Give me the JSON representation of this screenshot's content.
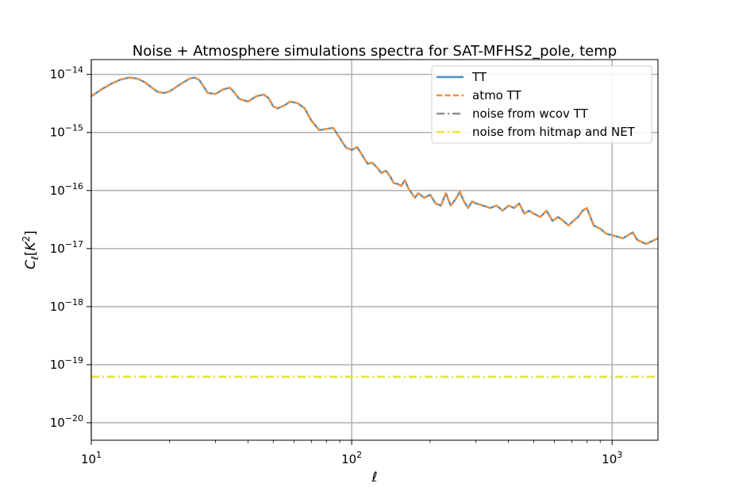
{
  "chart_data": {
    "type": "line",
    "title": "Noise + Atmosphere simulations spectra for SAT-MFHS2_pole, temp",
    "xlabel": "ℓ",
    "ylabel": "C_ℓ[K^2]",
    "xscale": "log",
    "yscale": "log",
    "xlim": [
      10,
      1500
    ],
    "ylim": [
      5e-21,
      1.8e-14
    ],
    "grid": true,
    "legend_position": "upper-right",
    "x_ticks": [
      {
        "value": 10,
        "base": "10",
        "exp": "1"
      },
      {
        "value": 100,
        "base": "10",
        "exp": "2"
      },
      {
        "value": 1000,
        "base": "10",
        "exp": "3"
      }
    ],
    "y_ticks": [
      {
        "value": 1e-14,
        "base": "10",
        "exp": "−14"
      },
      {
        "value": 1e-15,
        "base": "10",
        "exp": "−15"
      },
      {
        "value": 1e-16,
        "base": "10",
        "exp": "−16"
      },
      {
        "value": 1e-17,
        "base": "10",
        "exp": "−17"
      },
      {
        "value": 1e-18,
        "base": "10",
        "exp": "−18"
      },
      {
        "value": 1e-19,
        "base": "10",
        "exp": "−19"
      },
      {
        "value": 1e-20,
        "base": "10",
        "exp": "−20"
      }
    ],
    "series": [
      {
        "name": "TT",
        "color": "#4a90c4",
        "style": "solid",
        "x": [
          10,
          11,
          12,
          13,
          14,
          15,
          16,
          17,
          18,
          19,
          20,
          22,
          24,
          25,
          26,
          27,
          28,
          30,
          32,
          34,
          35,
          37,
          40,
          43,
          46,
          48,
          50,
          52,
          55,
          58,
          62,
          66,
          70,
          75,
          80,
          85,
          90,
          95,
          100,
          105,
          110,
          115,
          120,
          125,
          130,
          135,
          140,
          145,
          150,
          155,
          160,
          165,
          170,
          175,
          180,
          190,
          200,
          210,
          220,
          230,
          240,
          250,
          260,
          270,
          280,
          290,
          300,
          320,
          340,
          360,
          380,
          400,
          420,
          440,
          460,
          480,
          500,
          530,
          560,
          590,
          620,
          650,
          680,
          710,
          740,
          770,
          800,
          850,
          900,
          950,
          1000,
          1050,
          1100,
          1150,
          1200,
          1250,
          1300,
          1350,
          1400,
          1450,
          1500
        ],
        "y": [
          4.2e-15,
          5.6e-15,
          7e-15,
          8.2e-15,
          8.8e-15,
          8.5e-15,
          7.4e-15,
          6e-15,
          5e-15,
          4.8e-15,
          5.1e-15,
          6.8e-15,
          8.6e-15,
          8.8e-15,
          8e-15,
          6.2e-15,
          4.8e-15,
          4.6e-15,
          5.5e-15,
          5.9e-15,
          5.2e-15,
          3.8e-15,
          3.4e-15,
          4.2e-15,
          4.5e-15,
          3.9e-15,
          2.8e-15,
          2.6e-15,
          2.9e-15,
          3.4e-15,
          3.2e-15,
          2.6e-15,
          1.6e-15,
          1.1e-15,
          1.15e-15,
          1.2e-15,
          8e-16,
          5.5e-16,
          5e-16,
          5.6e-16,
          4e-16,
          2.9e-16,
          3e-16,
          2.5e-16,
          2e-16,
          2.2e-16,
          1.8e-16,
          1.35e-16,
          1.3e-16,
          1.2e-16,
          1.5e-16,
          1.1e-16,
          9e-17,
          7.5e-17,
          9e-17,
          7.5e-17,
          8.5e-17,
          6e-17,
          5.5e-17,
          9e-17,
          5.5e-17,
          7e-17,
          9.5e-17,
          6.5e-17,
          5e-17,
          6.5e-17,
          6e-17,
          5.5e-17,
          5e-17,
          5.5e-17,
          4.5e-17,
          5.5e-17,
          5e-17,
          6e-17,
          4e-17,
          4.5e-17,
          4e-17,
          3.5e-17,
          4.5e-17,
          3e-17,
          3.5e-17,
          3e-17,
          2.5e-17,
          3e-17,
          3.5e-17,
          4.5e-17,
          5e-17,
          2.5e-17,
          2.2e-17,
          1.8e-17,
          1.7e-17,
          1.6e-17,
          1.5e-17,
          1.7e-17,
          1.9e-17,
          1.4e-17,
          1.3e-17,
          1.2e-17,
          1.3e-17,
          1.4e-17,
          1.5e-17
        ]
      },
      {
        "name": "atmo TT",
        "color": "#f0913a",
        "style": "dashed",
        "x": [
          10,
          11,
          12,
          13,
          14,
          15,
          16,
          17,
          18,
          19,
          20,
          22,
          24,
          25,
          26,
          27,
          28,
          30,
          32,
          34,
          35,
          37,
          40,
          43,
          46,
          48,
          50,
          52,
          55,
          58,
          62,
          66,
          70,
          75,
          80,
          85,
          90,
          95,
          100,
          105,
          110,
          115,
          120,
          125,
          130,
          135,
          140,
          145,
          150,
          155,
          160,
          165,
          170,
          175,
          180,
          190,
          200,
          210,
          220,
          230,
          240,
          250,
          260,
          270,
          280,
          290,
          300,
          320,
          340,
          360,
          380,
          400,
          420,
          440,
          460,
          480,
          500,
          530,
          560,
          590,
          620,
          650,
          680,
          710,
          740,
          770,
          800,
          850,
          900,
          950,
          1000,
          1050,
          1100,
          1150,
          1200,
          1250,
          1300,
          1350,
          1400,
          1450,
          1500
        ],
        "y": [
          4.2e-15,
          5.6e-15,
          7e-15,
          8.2e-15,
          8.8e-15,
          8.5e-15,
          7.4e-15,
          6e-15,
          5e-15,
          4.8e-15,
          5.1e-15,
          6.8e-15,
          8.6e-15,
          8.8e-15,
          8e-15,
          6.2e-15,
          4.8e-15,
          4.6e-15,
          5.5e-15,
          5.9e-15,
          5.2e-15,
          3.8e-15,
          3.4e-15,
          4.2e-15,
          4.5e-15,
          3.9e-15,
          2.8e-15,
          2.6e-15,
          2.9e-15,
          3.4e-15,
          3.2e-15,
          2.6e-15,
          1.6e-15,
          1.1e-15,
          1.15e-15,
          1.2e-15,
          8e-16,
          5.5e-16,
          5e-16,
          5.6e-16,
          4e-16,
          2.9e-16,
          3e-16,
          2.5e-16,
          2e-16,
          2.2e-16,
          1.8e-16,
          1.35e-16,
          1.3e-16,
          1.2e-16,
          1.5e-16,
          1.1e-16,
          9e-17,
          7.5e-17,
          9e-17,
          7.5e-17,
          8.5e-17,
          6e-17,
          5.5e-17,
          9e-17,
          5.5e-17,
          7e-17,
          9.5e-17,
          6.5e-17,
          5e-17,
          6.5e-17,
          6e-17,
          5.5e-17,
          5e-17,
          5.5e-17,
          4.5e-17,
          5.5e-17,
          5e-17,
          6e-17,
          4e-17,
          4.5e-17,
          4e-17,
          3.5e-17,
          4.5e-17,
          3e-17,
          3.5e-17,
          3e-17,
          2.5e-17,
          3e-17,
          3.5e-17,
          4.5e-17,
          5e-17,
          2.5e-17,
          2.2e-17,
          1.8e-17,
          1.7e-17,
          1.6e-17,
          1.5e-17,
          1.7e-17,
          1.9e-17,
          1.4e-17,
          1.3e-17,
          1.2e-17,
          1.3e-17,
          1.4e-17,
          1.5e-17
        ]
      },
      {
        "name": "noise from wcov TT",
        "color": "#8c8c8c",
        "style": "dashdot",
        "x": [
          10,
          1500
        ],
        "y": [
          6.2e-20,
          6.2e-20
        ]
      },
      {
        "name": "noise from hitmap and NET",
        "color": "#e6e63c",
        "style": "dashdot",
        "x": [
          10,
          1500
        ],
        "y": [
          6.2e-20,
          6.2e-20
        ]
      }
    ]
  }
}
